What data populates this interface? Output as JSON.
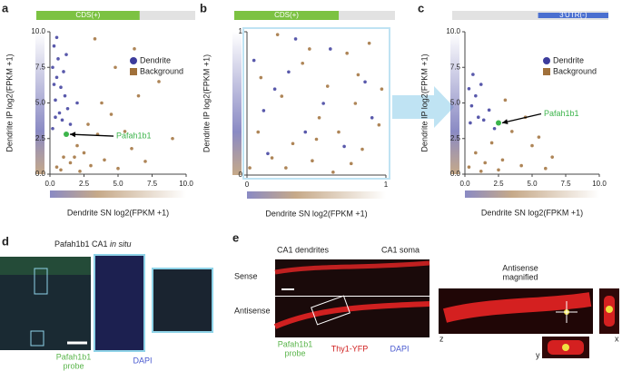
{
  "chart_data": [
    {
      "type": "scatter",
      "panel": "a",
      "feature": {
        "label": "CDS(+)",
        "color": "#7cc242"
      },
      "x_label": "Dendrite SN log2(FPKM +1)",
      "y_label": "Dendrite IP log2(FPKM +1)",
      "xlim": [
        0,
        10
      ],
      "ylim": [
        0,
        10
      ],
      "xticks": [
        {
          "value": 0,
          "label": "0.0"
        },
        {
          "value": 2.5,
          "label": "2.5"
        },
        {
          "value": 5,
          "label": "5.0"
        },
        {
          "value": 7.5,
          "label": "7.5"
        },
        {
          "value": 10,
          "label": "10.0"
        }
      ],
      "yticks": [
        {
          "value": 0,
          "label": "0.0"
        },
        {
          "value": 2.5,
          "label": "2.5"
        },
        {
          "value": 5,
          "label": "5.0"
        },
        {
          "value": 7.5,
          "label": "7.5"
        },
        {
          "value": 10,
          "label": "10.0"
        }
      ],
      "legend": "upper right",
      "series": [
        {
          "name": "Background",
          "color": "#a0703a",
          "x": [
            0.5,
            1.0,
            1.5,
            2.0,
            2.5,
            3.0,
            3.5,
            4.0,
            4.5,
            5.0,
            5.5,
            6.0,
            6.5,
            7.0,
            8.0,
            9.0,
            1.8,
            2.8,
            3.8,
            4.8,
            6.2,
            0.8,
            2.2,
            3.3
          ],
          "values": [
            0.5,
            1.2,
            0.8,
            2.0,
            1.5,
            0.6,
            2.8,
            1.0,
            4.2,
            0.4,
            3.0,
            1.8,
            5.5,
            0.9,
            6.5,
            2.5,
            1.2,
            3.5,
            5.0,
            7.5,
            8.8,
            0.3,
            0.2,
            9.5
          ]
        },
        {
          "name": "Dendrite",
          "color": "#3c3c9c",
          "x": [
            0.2,
            0.4,
            0.5,
            0.7,
            0.3,
            0.9,
            1.1,
            0.6,
            1.3,
            0.2,
            0.8,
            1.5,
            0.4,
            1.0,
            2.0,
            0.5,
            1.2,
            0.3
          ],
          "values": [
            7.5,
            5.2,
            6.8,
            4.3,
            9.0,
            3.8,
            5.5,
            8.1,
            4.6,
            3.2,
            6.1,
            3.5,
            4.0,
            7.2,
            5.0,
            9.6,
            8.4,
            6.3
          ]
        }
      ],
      "annotation": {
        "text": "Pafah1b1",
        "x": 1.2,
        "y": 2.8,
        "color": "#3cb44b"
      }
    },
    {
      "type": "scatter",
      "panel": "b",
      "feature": {
        "label": "CDS(+)",
        "color": "#7cc242"
      },
      "x_label": "Dendrite SN log2(FPKM +1)",
      "y_label": "Dendrite IP log2(FPKM +1)",
      "xlim": [
        0,
        1
      ],
      "ylim": [
        0,
        1
      ],
      "xticks": [
        0,
        1
      ],
      "yticks": [
        0,
        1
      ],
      "series": [
        {
          "color": "#a0703a",
          "x": [
            0.02,
            0.08,
            0.18,
            0.25,
            0.33,
            0.4,
            0.47,
            0.52,
            0.58,
            0.66,
            0.72,
            0.78,
            0.83,
            0.88,
            0.95,
            0.1,
            0.28,
            0.45,
            0.62,
            0.8,
            0.97,
            0.22,
            0.5,
            0.75
          ],
          "values": [
            0.05,
            0.3,
            0.12,
            0.55,
            0.22,
            0.78,
            0.1,
            0.4,
            0.62,
            0.3,
            0.85,
            0.5,
            0.18,
            0.92,
            0.35,
            0.68,
            0.05,
            0.88,
            0.02,
            0.7,
            0.6,
            0.98,
            0.25,
            0.08
          ]
        },
        {
          "color": "#3c3c9c",
          "x": [
            0.05,
            0.12,
            0.2,
            0.3,
            0.42,
            0.55,
            0.6,
            0.7,
            0.85,
            0.9,
            0.15,
            0.35
          ],
          "values": [
            0.8,
            0.45,
            0.6,
            0.72,
            0.3,
            0.5,
            0.88,
            0.2,
            0.65,
            0.4,
            0.15,
            0.95
          ]
        }
      ]
    },
    {
      "type": "scatter",
      "panel": "c",
      "feature": {
        "label": "3'UTR(-)",
        "color": "#4a6fd0"
      },
      "x_label": "Dendrite SN log2(FPKM +1)",
      "y_label": "Dendrite IP log2(FPKM +1)",
      "xlim": [
        0,
        10
      ],
      "ylim": [
        0,
        10
      ],
      "xticks": [
        {
          "value": 0,
          "label": "0.0"
        },
        {
          "value": 2.5,
          "label": "2.5"
        },
        {
          "value": 5,
          "label": "5.0"
        },
        {
          "value": 7.5,
          "label": "7.5"
        },
        {
          "value": 10,
          "label": "10.0"
        }
      ],
      "yticks": [
        {
          "value": 0,
          "label": "0.0"
        },
        {
          "value": 2.5,
          "label": "2.5"
        },
        {
          "value": 5,
          "label": "5.0"
        },
        {
          "value": 7.5,
          "label": "7.5"
        },
        {
          "value": 10,
          "label": "10.0"
        }
      ],
      "legend": "upper right",
      "series": [
        {
          "name": "Background",
          "color": "#a0703a",
          "x": [
            0.3,
            0.8,
            1.5,
            2.0,
            2.8,
            3.5,
            4.2,
            5.0,
            6.0,
            6.5,
            3.0,
            4.5,
            1.2,
            2.5,
            5.5
          ],
          "values": [
            0.5,
            1.5,
            0.8,
            2.2,
            1.0,
            3.0,
            0.6,
            2.0,
            0.4,
            1.2,
            5.2,
            4.0,
            0.2,
            0.3,
            2.6
          ]
        },
        {
          "name": "Dendrite",
          "color": "#3c3c9c",
          "x": [
            0.3,
            0.5,
            0.8,
            1.0,
            1.4,
            1.8,
            0.6,
            2.2,
            1.2,
            0.4
          ],
          "values": [
            6.0,
            4.8,
            5.5,
            4.0,
            3.8,
            4.5,
            7.0,
            3.2,
            6.3,
            3.6
          ]
        }
      ],
      "annotation": {
        "text": "Pafah1b1",
        "x": 2.5,
        "y": 3.6,
        "color": "#3cb44b"
      }
    }
  ],
  "images": {
    "d": {
      "panel": "d",
      "title": "Pafah1b1 CA1 ",
      "title_italic": "in situ",
      "probe": [
        "Pafah1b1",
        "probe"
      ],
      "dapi": "DAPI"
    },
    "e": {
      "panel": "e",
      "dendrites": "CA1 dendrites",
      "soma": "CA1 soma",
      "sense": "Sense",
      "antisense": "Antisense",
      "probe": [
        "Pafah1b1",
        "probe"
      ],
      "yfp": "Thy1-YFP",
      "dapi": "DAPI",
      "magnified": [
        "Antisense",
        "magnified"
      ],
      "axes": [
        "z",
        "x",
        "y"
      ]
    }
  }
}
